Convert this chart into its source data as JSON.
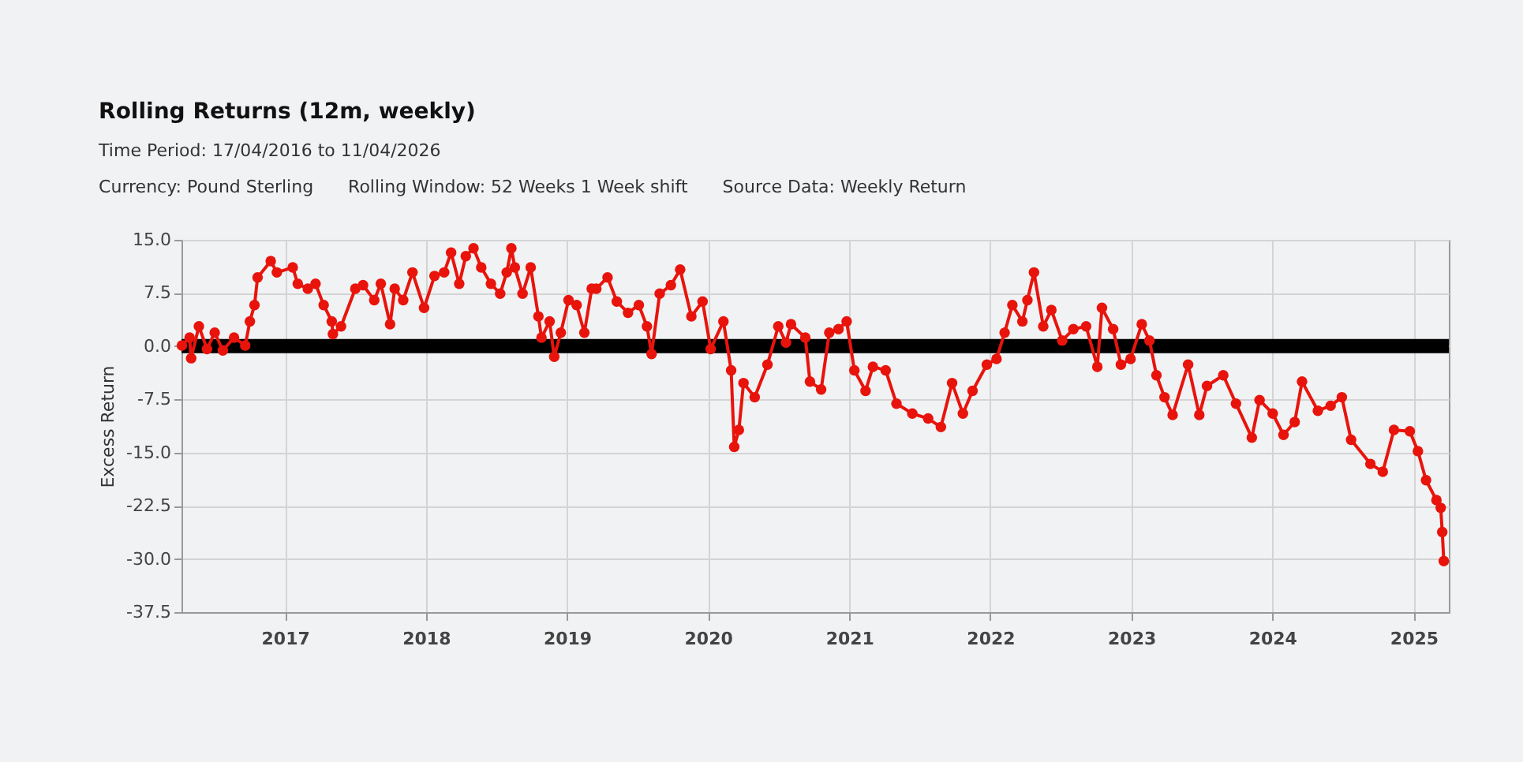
{
  "chart_data": {
    "type": "line",
    "title": "Rolling Returns (12m, weekly)",
    "subtitle": "Time Period: 17/04/2016 to 11/04/2026",
    "annotations": [
      "Currency: Pound Sterling",
      "Rolling Window: 52 Weeks 1 Week shift",
      "Source Data: Weekly Return"
    ],
    "ylabel": "Excess Return",
    "x": [
      "2016-04-09",
      "2016-04-29",
      "2016-05-03",
      "2016-05-23",
      "2016-06-13",
      "2016-07-03",
      "2016-07-24",
      "2016-08-22",
      "2016-09-20",
      "2016-10-02",
      "2016-10-14",
      "2016-10-22",
      "2016-11-25",
      "2016-12-11",
      "2017-01-21",
      "2017-02-03",
      "2017-03-01",
      "2017-03-21",
      "2017-04-11",
      "2017-05-02",
      "2017-05-05",
      "2017-05-26",
      "2017-07-02",
      "2017-07-22",
      "2017-08-20",
      "2017-09-06",
      "2017-09-30",
      "2017-10-12",
      "2017-11-03",
      "2017-11-27",
      "2017-12-27",
      "2018-01-23",
      "2018-02-17",
      "2018-03-07",
      "2018-03-28",
      "2018-04-14",
      "2018-05-04",
      "2018-05-24",
      "2018-06-18",
      "2018-07-12",
      "2018-07-29",
      "2018-08-10",
      "2018-08-19",
      "2018-09-08",
      "2018-09-29",
      "2018-10-19",
      "2018-10-27",
      "2018-11-17",
      "2018-11-29",
      "2018-12-16",
      "2019-01-05",
      "2019-01-26",
      "2019-02-15",
      "2019-03-06",
      "2019-03-18",
      "2019-04-16",
      "2019-05-10",
      "2019-06-08",
      "2019-07-06",
      "2019-07-27",
      "2019-08-08",
      "2019-08-29",
      "2019-09-27",
      "2019-10-21",
      "2019-11-19",
      "2019-12-18",
      "2020-01-08",
      "2020-02-10",
      "2020-03-01",
      "2020-03-09",
      "2020-03-21",
      "2020-04-02",
      "2020-05-01",
      "2020-06-03",
      "2020-07-01",
      "2020-07-21",
      "2020-08-03",
      "2020-09-09",
      "2020-09-21",
      "2020-10-20",
      "2020-11-10",
      "2020-12-04",
      "2020-12-25",
      "2021-01-14",
      "2021-02-12",
      "2021-03-03",
      "2021-04-05",
      "2021-05-03",
      "2021-06-13",
      "2021-07-24",
      "2021-08-26",
      "2021-09-24",
      "2021-10-22",
      "2021-11-16",
      "2021-12-23",
      "2022-01-17",
      "2022-02-07",
      "2022-02-27",
      "2022-03-25",
      "2022-04-07",
      "2022-04-24",
      "2022-05-18",
      "2022-06-08",
      "2022-07-06",
      "2022-08-04",
      "2022-09-06",
      "2022-10-05",
      "2022-10-17",
      "2022-11-15",
      "2022-12-05",
      "2022-12-30",
      "2023-01-28",
      "2023-02-17",
      "2023-03-07",
      "2023-03-28",
      "2023-04-18",
      "2023-05-28",
      "2023-06-26",
      "2023-07-16",
      "2023-08-27",
      "2023-09-29",
      "2023-11-09",
      "2023-11-29",
      "2024-01-02",
      "2024-01-30",
      "2024-02-28",
      "2024-03-18",
      "2024-04-28",
      "2024-05-31",
      "2024-06-29",
      "2024-07-23",
      "2024-09-11",
      "2024-10-13",
      "2024-11-11",
      "2024-12-22",
      "2025-01-12",
      "2025-02-02",
      "2025-03-01",
      "2025-03-12",
      "2025-03-16",
      "2025-03-20"
    ],
    "series": [
      {
        "color": "#e8140c",
        "values": [
          0.1,
          1.2,
          -1.7,
          2.8,
          -0.4,
          1.9,
          -0.6,
          1.2,
          0.1,
          3.5,
          5.8,
          9.7,
          12.0,
          10.4,
          11.1,
          8.8,
          8.1,
          8.8,
          5.8,
          3.5,
          1.7,
          2.8,
          8.1,
          8.6,
          6.5,
          8.8,
          3.1,
          8.1,
          6.5,
          10.4,
          5.4,
          9.9,
          10.4,
          13.2,
          8.8,
          12.7,
          13.8,
          11.1,
          8.8,
          7.4,
          10.4,
          13.8,
          11.1,
          7.4,
          11.1,
          4.2,
          1.2,
          3.5,
          -1.5,
          1.9,
          6.5,
          5.8,
          1.9,
          8.1,
          8.1,
          9.7,
          6.3,
          4.7,
          5.8,
          2.8,
          -1.1,
          7.4,
          8.6,
          10.8,
          4.2,
          6.3,
          -0.4,
          3.5,
          -3.4,
          -14.2,
          -11.8,
          -5.2,
          -7.2,
          -2.6,
          2.8,
          0.5,
          3.1,
          1.2,
          -5.0,
          -6.1,
          1.9,
          2.4,
          3.5,
          -3.4,
          -6.3,
          -2.9,
          -3.4,
          -8.1,
          -9.5,
          -10.2,
          -11.4,
          -5.2,
          -9.5,
          -6.3,
          -2.6,
          -1.8,
          1.9,
          5.8,
          3.5,
          6.5,
          10.4,
          2.8,
          5.1,
          0.8,
          2.4,
          2.8,
          -2.9,
          5.4,
          2.4,
          -2.6,
          -1.8,
          3.1,
          0.8,
          -4.1,
          -7.2,
          -9.7,
          -2.6,
          -9.7,
          -5.6,
          -4.1,
          -8.1,
          -12.9,
          -7.6,
          -9.5,
          -12.5,
          -10.7,
          -5.0,
          -9.1,
          -8.4,
          -7.2,
          -13.2,
          -16.6,
          -17.7,
          -11.8,
          -12.0,
          -14.8,
          -18.9,
          -21.7,
          -22.8,
          -26.2,
          -30.3
        ]
      }
    ],
    "xlim": [
      "2016-04-08",
      "2025-04-02"
    ],
    "xticks": [
      {
        "value": "2017-01-01",
        "label": "2017"
      },
      {
        "value": "2018-01-01",
        "label": "2018"
      },
      {
        "value": "2019-01-01",
        "label": "2019"
      },
      {
        "value": "2020-01-01",
        "label": "2020"
      },
      {
        "value": "2021-01-01",
        "label": "2021"
      },
      {
        "value": "2022-01-01",
        "label": "2022"
      },
      {
        "value": "2023-01-01",
        "label": "2023"
      },
      {
        "value": "2024-01-01",
        "label": "2024"
      },
      {
        "value": "2025-01-01",
        "label": "2025"
      }
    ],
    "ylim": [
      -37.5,
      15
    ],
    "yticks": [
      {
        "value": 15,
        "label": "15.0"
      },
      {
        "value": 7.5,
        "label": "7.5"
      },
      {
        "value": 0,
        "label": "0.0"
      },
      {
        "value": -7.5,
        "label": "-7.5"
      },
      {
        "value": -15,
        "label": "-15.0"
      },
      {
        "value": -22.5,
        "label": "-22.5"
      },
      {
        "value": -30,
        "label": "-30.0"
      },
      {
        "value": -37.5,
        "label": "-37.5"
      }
    ],
    "grid": true,
    "marker": "circle",
    "line_style": "solid",
    "ref_lines": [
      {
        "axis": "y",
        "value": 0,
        "color": "#000000"
      }
    ]
  }
}
